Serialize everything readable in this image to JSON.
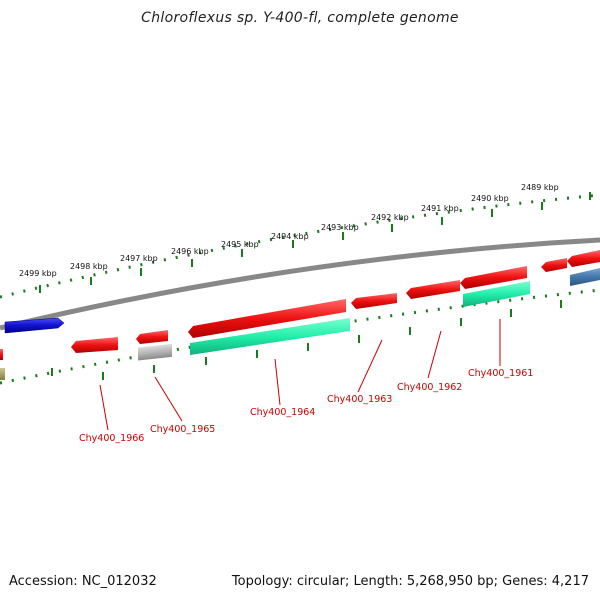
{
  "title": "Chloroflexus sp. Y-400-fl, complete genome",
  "footer": {
    "accession": "Accession: NC_012032",
    "stats": "Topology: circular; Length: 5,268,950 bp; Genes: 4,217"
  },
  "ticks": [
    {
      "label": "2499 kbp"
    },
    {
      "label": "2498 kbp"
    },
    {
      "label": "2497 kbp"
    },
    {
      "label": "2496 kbp"
    },
    {
      "label": "2495 kbp"
    },
    {
      "label": "2494 kbp"
    },
    {
      "label": "2493 kbp"
    },
    {
      "label": "2492 kbp"
    },
    {
      "label": "2491 kbp"
    },
    {
      "label": "2490 kbp"
    },
    {
      "label": "2489 kbp"
    }
  ],
  "genes": [
    {
      "label": "Chy400_1966"
    },
    {
      "label": "Chy400_1965"
    },
    {
      "label": "Chy400_1964"
    },
    {
      "label": "Chy400_1963"
    },
    {
      "label": "Chy400_1962"
    },
    {
      "label": "Chy400_1961"
    }
  ],
  "colors": {
    "cds": "#ee1111",
    "rna": "#22eeaa",
    "forward_other": "#1111cc",
    "grey_feature": "#b5b5b5",
    "steel_feature": "#4477aa",
    "olive_feature": "#a0a060",
    "backbone": "#888888",
    "ticks": "#1b7a1b",
    "gene_label": "#cc0000"
  }
}
